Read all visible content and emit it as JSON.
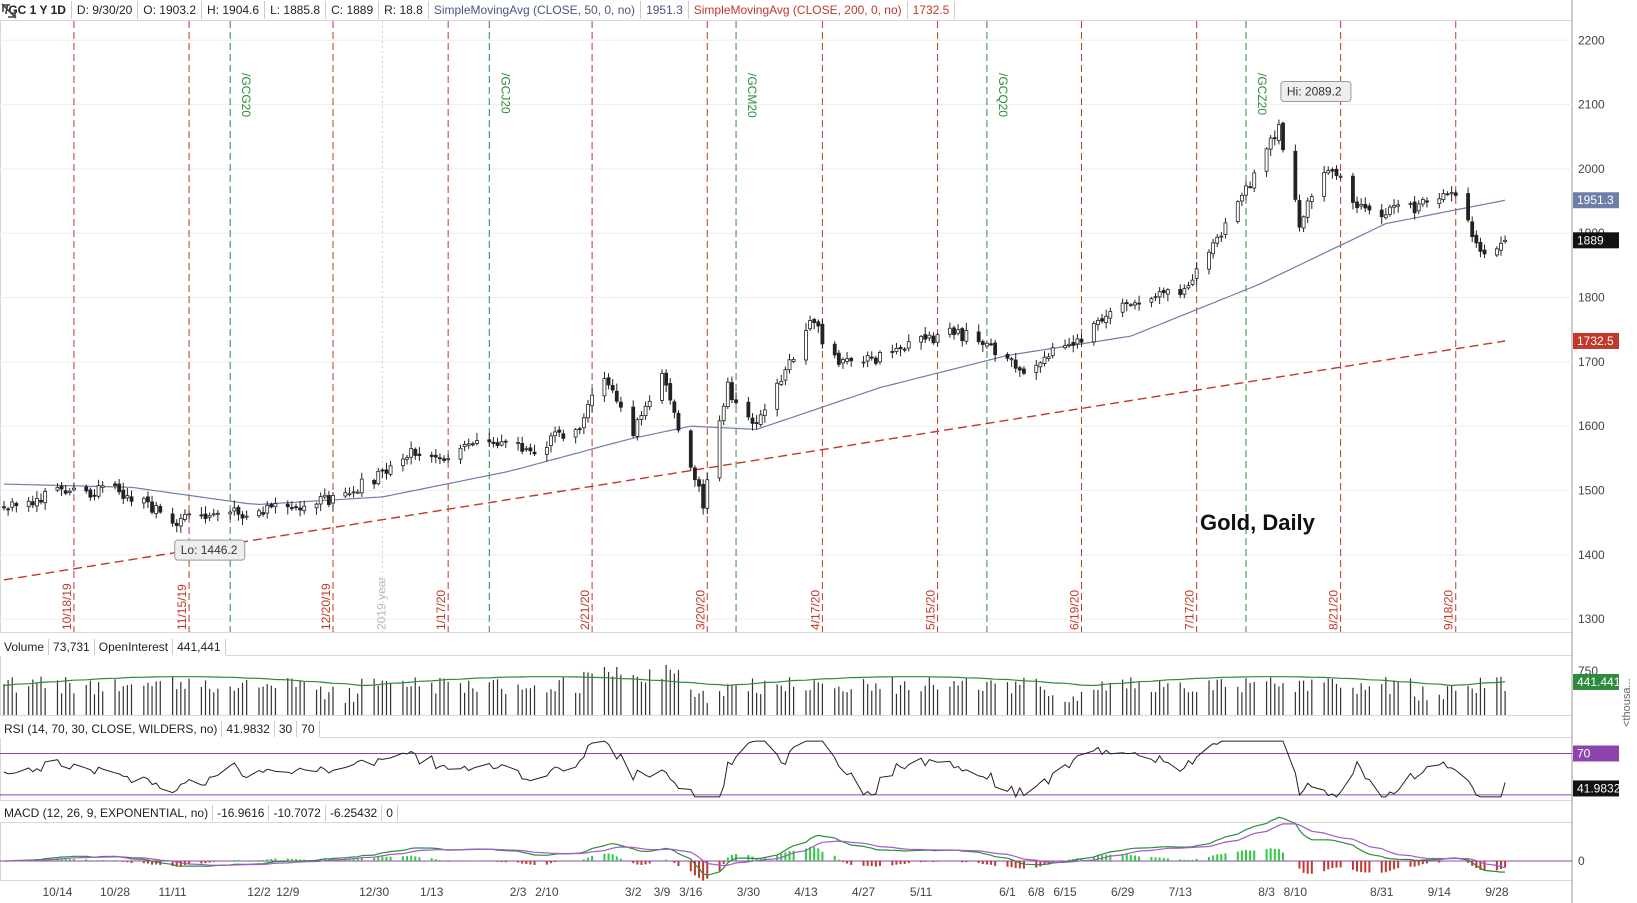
{
  "header": {
    "symbol": "/GC 1 Y 1D",
    "date": "D: 9/30/20",
    "open": "O: 1903.2",
    "high": "H: 1904.6",
    "low": "L: 1885.8",
    "close": "C: 1889",
    "range": "R: 18.8",
    "sma50_label": "SimpleMovingAvg (CLOSE, 50, 0, no)",
    "sma50_value": "1951.3",
    "sma200_label": "SimpleMovingAvg (CLOSE, 200, 0, no)",
    "sma200_value": "1732.5"
  },
  "volume_header": {
    "label": "Volume",
    "value": "73,731",
    "oi_label": "OpenInterest",
    "oi_value": "441,441"
  },
  "rsi_header": {
    "label": "RSI (14, 70, 30, CLOSE, WILDERS, no)",
    "value": "41.9832",
    "lower": "30",
    "upper": "70"
  },
  "macd_header": {
    "label": "MACD (12, 26, 9, EXPONENTIAL, no)",
    "value": "-16.9616",
    "avg": "-10.7072",
    "diff": "-6.25432",
    "zero": "0"
  },
  "chart_title": "Gold, Daily",
  "annotations": {
    "hi": "Hi: 2089.2",
    "lo": "Lo: 1446.2"
  },
  "price_tags": {
    "sma50": "1951.3",
    "close": "1889",
    "sma200": "1732.5",
    "oi": "441.441",
    "rsi": "41.9832",
    "rsi70": "70"
  },
  "volume_axis": {
    "tick": "750",
    "unit": "<thousa..."
  },
  "colors": {
    "up": "#ffffff",
    "down": "#222222",
    "sma50": "#6f7ea8",
    "sma200": "#c0392b",
    "oi": "#2e8b3d",
    "rsi": "#222222",
    "rsi_band": "#8e44ad",
    "macd": "#2e8b3d",
    "macd_avg": "#a05cc8",
    "hist_up": "#2ecc40",
    "hist_down": "#c0392b",
    "exp_line": "#c0392b",
    "roll_line": "#2e8b3d"
  },
  "chart_data": [
    {
      "type": "candlestick",
      "title": "Gold, Daily",
      "ylim": [
        1280,
        2230
      ],
      "yticks": [
        2200,
        2100,
        2000,
        1900,
        1800,
        1700,
        1600,
        1500,
        1400,
        1300
      ],
      "xticks": [
        "10/14",
        "10/28",
        "11/11",
        "12/2",
        "12/9",
        "12/30",
        "1/13",
        "2/3",
        "2/10",
        "3/2",
        "3/9",
        "3/16",
        "3/30",
        "4/13",
        "4/27",
        "5/11",
        "6/1",
        "6/8",
        "6/15",
        "6/29",
        "7/13",
        "8/3",
        "8/10",
        "8/31",
        "9/14",
        "9/28"
      ],
      "expiration_markers": [
        "10/18/19",
        "11/15/19",
        "12/20/19",
        "1/17/20",
        "2/21/20",
        "3/20/20",
        "4/17/20",
        "5/15/20",
        "6/19/20",
        "7/17/20",
        "8/21/20",
        "9/18/20"
      ],
      "rollover_markers": [
        "/GCG20",
        "/GCJ20",
        "/GCM20",
        "/GCQ20",
        "/GCZ20"
      ],
      "year_marker": "2019 year",
      "anchors": [
        {
          "x": "2019-10-01",
          "close": 1478
        },
        {
          "x": "2019-10-14",
          "close": 1495
        },
        {
          "x": "2019-10-28",
          "close": 1500
        },
        {
          "x": "2019-11-12",
          "close": 1455
        },
        {
          "x": "2019-11-25",
          "close": 1462
        },
        {
          "x": "2019-12-10",
          "close": 1478
        },
        {
          "x": "2019-12-20",
          "close": 1485
        },
        {
          "x": "2020-01-02",
          "close": 1528
        },
        {
          "x": "2020-01-08",
          "close": 1565
        },
        {
          "x": "2020-01-14",
          "close": 1548
        },
        {
          "x": "2020-01-28",
          "close": 1580
        },
        {
          "x": "2020-02-05",
          "close": 1560
        },
        {
          "x": "2020-02-18",
          "close": 1600
        },
        {
          "x": "2020-02-24",
          "close": 1680
        },
        {
          "x": "2020-03-02",
          "close": 1595
        },
        {
          "x": "2020-03-09",
          "close": 1680
        },
        {
          "x": "2020-03-19",
          "close": 1478
        },
        {
          "x": "2020-03-25",
          "close": 1660
        },
        {
          "x": "2020-04-01",
          "close": 1595
        },
        {
          "x": "2020-04-14",
          "close": 1765
        },
        {
          "x": "2020-04-21",
          "close": 1700
        },
        {
          "x": "2020-05-04",
          "close": 1710
        },
        {
          "x": "2020-05-18",
          "close": 1750
        },
        {
          "x": "2020-05-28",
          "close": 1725
        },
        {
          "x": "2020-06-05",
          "close": 1690
        },
        {
          "x": "2020-06-19",
          "close": 1735
        },
        {
          "x": "2020-06-30",
          "close": 1795
        },
        {
          "x": "2020-07-14",
          "close": 1810
        },
        {
          "x": "2020-07-27",
          "close": 1940
        },
        {
          "x": "2020-08-06",
          "close": 2070
        },
        {
          "x": "2020-08-11",
          "close": 1915
        },
        {
          "x": "2020-08-18",
          "close": 2005
        },
        {
          "x": "2020-08-27",
          "close": 1930
        },
        {
          "x": "2020-09-08",
          "close": 1940
        },
        {
          "x": "2020-09-18",
          "close": 1960
        },
        {
          "x": "2020-09-24",
          "close": 1870
        },
        {
          "x": "2020-09-30",
          "close": 1889
        }
      ],
      "hi": {
        "x": "2020-08-06",
        "value": 2089.2
      },
      "lo": {
        "x": "2019-11-12",
        "value": 1446.2
      },
      "sma50_anchors": [
        {
          "x": "2019-10-01",
          "y": 1510
        },
        {
          "x": "2019-11-01",
          "y": 1505
        },
        {
          "x": "2019-12-01",
          "y": 1478
        },
        {
          "x": "2020-01-01",
          "y": 1490
        },
        {
          "x": "2020-02-01",
          "y": 1530
        },
        {
          "x": "2020-03-01",
          "y": 1580
        },
        {
          "x": "2020-03-16",
          "y": 1600
        },
        {
          "x": "2020-04-01",
          "y": 1595
        },
        {
          "x": "2020-05-01",
          "y": 1660
        },
        {
          "x": "2020-06-01",
          "y": 1710
        },
        {
          "x": "2020-07-01",
          "y": 1740
        },
        {
          "x": "2020-08-01",
          "y": 1820
        },
        {
          "x": "2020-09-01",
          "y": 1915
        },
        {
          "x": "2020-09-30",
          "y": 1951.3
        }
      ],
      "sma200_anchors": [
        {
          "x": "2019-10-01",
          "y": 1361
        },
        {
          "x": "2020-09-30",
          "y": 1732.5
        }
      ]
    },
    {
      "type": "bar",
      "title": "Volume",
      "ylim": [
        0,
        1000
      ],
      "yticks": [
        750
      ],
      "open_interest_range": [
        450,
        700
      ]
    },
    {
      "type": "line",
      "title": "RSI",
      "ylim": [
        25,
        85
      ],
      "bands": [
        30,
        70
      ],
      "last": 41.9832
    },
    {
      "type": "line",
      "title": "MACD",
      "ylim": [
        -30,
        60
      ],
      "yticks": [
        0
      ],
      "last": {
        "macd": -16.9616,
        "avg": -10.7072,
        "diff": -6.25432
      }
    }
  ]
}
